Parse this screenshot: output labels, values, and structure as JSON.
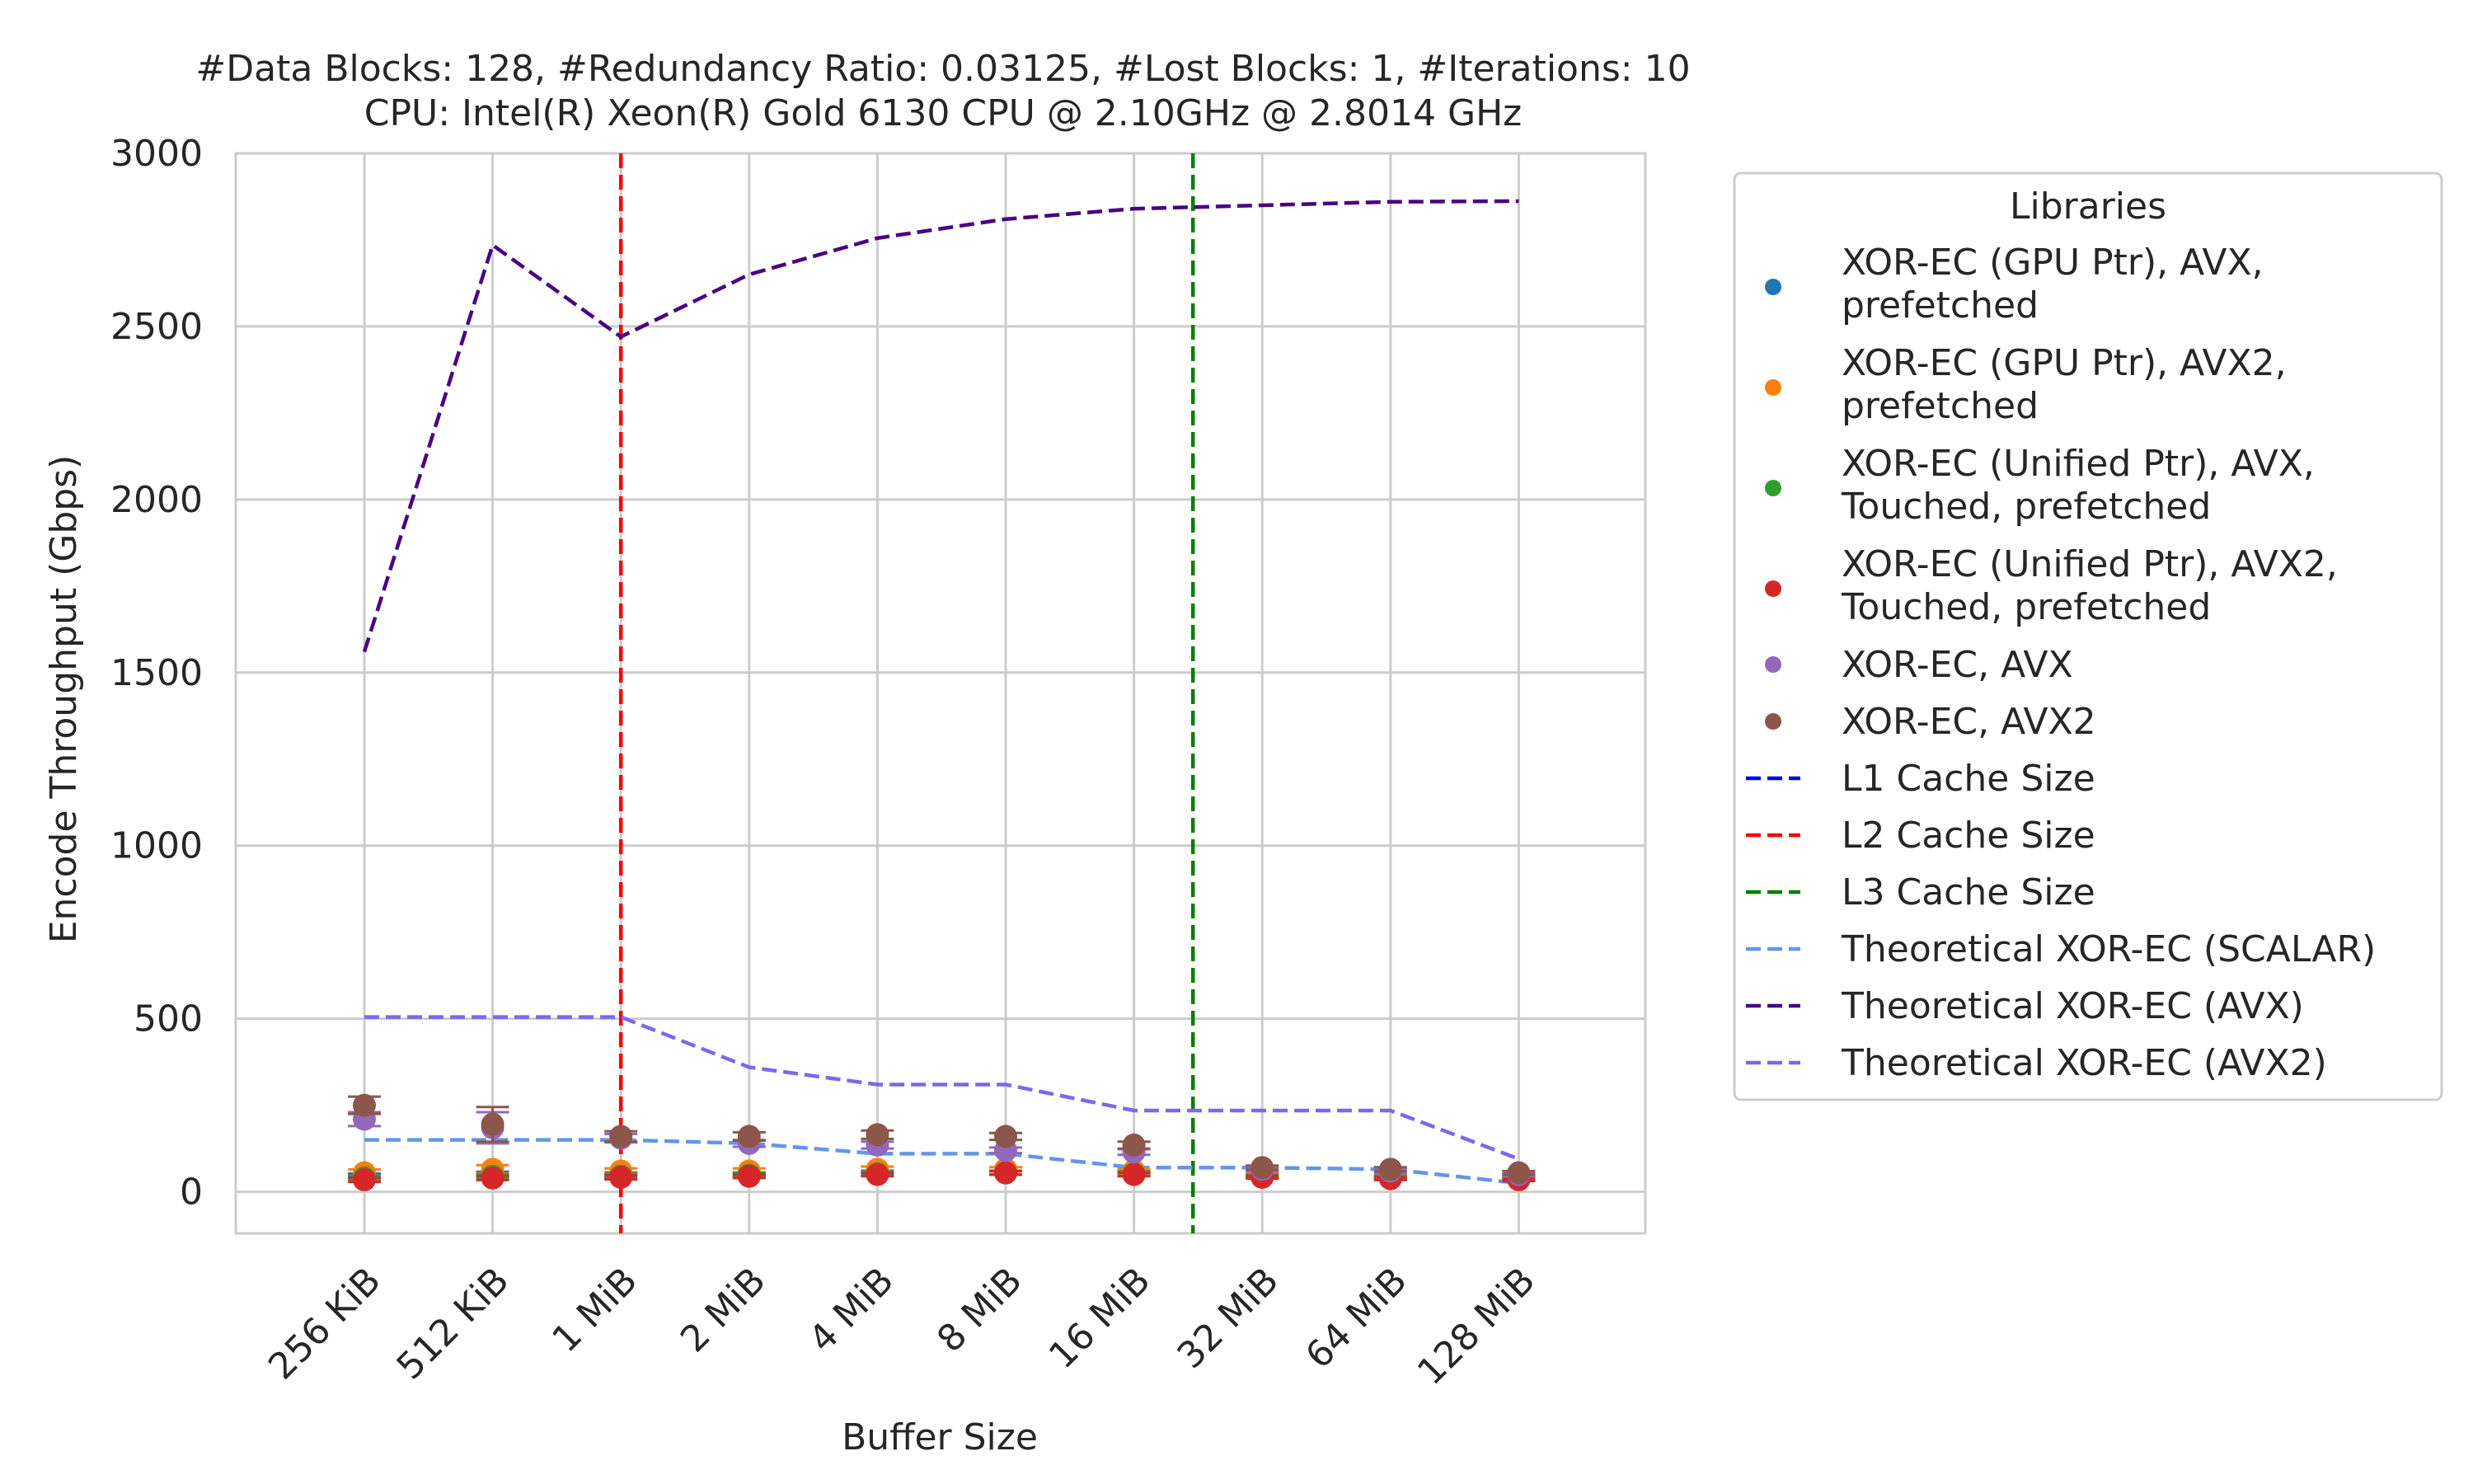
{
  "chart_data": {
    "type": "line",
    "title": "#Data Blocks: 128, #Redundancy Ratio: 0.03125, #Lost Blocks: 1, #Iterations: 10",
    "subtitle": "CPU: Intel(R) Xeon(R) Gold 6130 CPU @ 2.10GHz @ 2.8014 GHz",
    "xlabel": "Buffer Size",
    "ylabel": "Encode Throughput (Gbps)",
    "categories": [
      "256 KiB",
      "512 KiB",
      "1 MiB",
      "2 MiB",
      "4 MiB",
      "8 MiB",
      "16 MiB",
      "32 MiB",
      "64 MiB",
      "128 MiB"
    ],
    "ylim": [
      -120,
      3000
    ],
    "yticks": [
      0,
      500,
      1000,
      1500,
      2000,
      2500,
      3000
    ],
    "grid": true,
    "legend": {
      "title": "Libraries",
      "placement": "outside-right"
    },
    "series": [
      {
        "name": "XOR-EC (GPU Ptr), AVX, prefetched",
        "kind": "scatter",
        "color": "#1f77b4",
        "values": [
          45,
          50,
          50,
          50,
          55,
          55,
          55,
          45,
          42,
          40
        ],
        "err": [
          8,
          8,
          6,
          6,
          6,
          6,
          6,
          5,
          5,
          4
        ]
      },
      {
        "name": "XOR-EC (GPU Ptr), AVX2, prefetched",
        "kind": "scatter",
        "color": "#ff7f0e",
        "values": [
          55,
          65,
          60,
          60,
          65,
          65,
          60,
          50,
          45,
          42
        ],
        "err": [
          10,
          12,
          8,
          8,
          8,
          6,
          6,
          5,
          5,
          4
        ]
      },
      {
        "name": "XOR-EC (Unified Ptr), AVX, Touched, prefetched",
        "kind": "scatter",
        "color": "#2ca02c",
        "values": [
          40,
          45,
          45,
          48,
          52,
          55,
          52,
          45,
          42,
          38
        ],
        "err": [
          6,
          6,
          6,
          5,
          5,
          5,
          5,
          4,
          4,
          4
        ]
      },
      {
        "name": "XOR-EC (Unified Ptr), AVX2, Touched, prefetched",
        "kind": "scatter",
        "color": "#d62728",
        "values": [
          35,
          40,
          42,
          45,
          50,
          55,
          50,
          42,
          38,
          35
        ],
        "err": [
          6,
          6,
          6,
          5,
          5,
          5,
          5,
          4,
          4,
          4
        ]
      },
      {
        "name": "XOR-EC, AVX",
        "kind": "scatter",
        "color": "#9467bd",
        "values": [
          210,
          185,
          155,
          140,
          135,
          120,
          115,
          65,
          60,
          50
        ],
        "err": [
          20,
          45,
          12,
          10,
          10,
          8,
          8,
          6,
          6,
          5
        ]
      },
      {
        "name": "XOR-EC, AVX2",
        "kind": "scatter",
        "color": "#8c564b",
        "values": [
          250,
          195,
          160,
          160,
          165,
          160,
          135,
          70,
          65,
          55
        ],
        "err": [
          25,
          50,
          15,
          12,
          12,
          10,
          10,
          6,
          6,
          5
        ]
      },
      {
        "name": "L1 Cache Size",
        "kind": "vline",
        "color": "#0000ff",
        "x": null
      },
      {
        "name": "L2 Cache Size",
        "kind": "vline",
        "color": "#ff0000",
        "x": 2
      },
      {
        "name": "L3 Cache Size",
        "kind": "vline",
        "color": "#008000",
        "x": 6.46
      },
      {
        "name": "Theoretical XOR-EC (SCALAR)",
        "kind": "line",
        "color": "#6495ed",
        "values": [
          150,
          150,
          150,
          140,
          110,
          110,
          70,
          70,
          65,
          25
        ]
      },
      {
        "name": "Theoretical XOR-EC (AVX)",
        "kind": "line",
        "color": "#4b0082",
        "values": [
          1560,
          2735,
          2470,
          2650,
          2755,
          2810,
          2840,
          2850,
          2860,
          2862
        ]
      },
      {
        "name": "Theoretical XOR-EC (AVX2)",
        "kind": "line",
        "color": "#7b68ee",
        "values": [
          505,
          505,
          505,
          360,
          310,
          310,
          235,
          235,
          235,
          95
        ]
      }
    ]
  }
}
